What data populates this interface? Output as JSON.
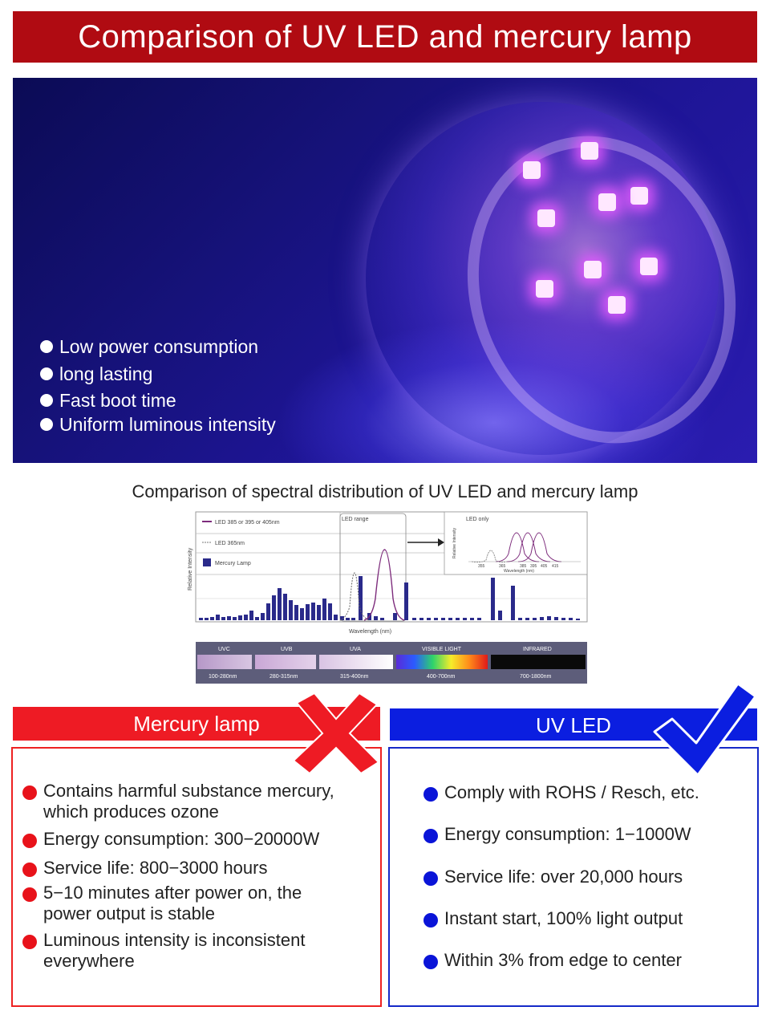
{
  "header": {
    "title": "Comparison of UV LED and mercury lamp"
  },
  "hero": {
    "features": [
      "Low power consumption",
      "long lasting",
      "Fast boot time",
      "Uniform luminous intensity"
    ]
  },
  "spectrum": {
    "title": "Comparison of spectral distribution of UV LED and mercury lamp",
    "legend": [
      "LED 385 or 395 or 405nm",
      "LED 365nm",
      "Mercury Lamp"
    ],
    "y_label": "Relative Intensity",
    "x_label": "Wavelength (nm)",
    "led_range_label": "LED range",
    "inset": {
      "title": "LED only",
      "y_label": "Relative Intensity",
      "x_label": "Wavelength (nm)",
      "ticks": [
        "355",
        "365",
        "385",
        "395",
        "405",
        "415"
      ]
    },
    "bands": [
      {
        "name": "UVC",
        "range": "100-280nm"
      },
      {
        "name": "UVB",
        "range": "280-315nm"
      },
      {
        "name": "UVA",
        "range": "315-400nm"
      },
      {
        "name": "VISIBLE LIGHT",
        "range": "400-700nm"
      },
      {
        "name": "INFRARED",
        "range": "700-1800nm"
      }
    ]
  },
  "mercury": {
    "title": "Mercury lamp",
    "items": [
      "Contains harmful substance mercury, which produces ozone",
      "Energy consumption: 300−20000W",
      "Service life: 800−3000 hours",
      "5−10 minutes after power on, the power output is stable",
      "Luminous intensity is inconsistent everywhere"
    ]
  },
  "uv_led": {
    "title": "UV LED",
    "items": [
      "Comply with ROHS / Resch, etc.",
      "Energy consumption: 1−1000W",
      "Service life: over 20,000 hours",
      "Instant start, 100% light output",
      "Within 3% from edge to center"
    ]
  },
  "colors": {
    "banner_red": "#b00b12",
    "mercury_red": "#ee1b24",
    "led_blue": "#0b1ee0"
  }
}
